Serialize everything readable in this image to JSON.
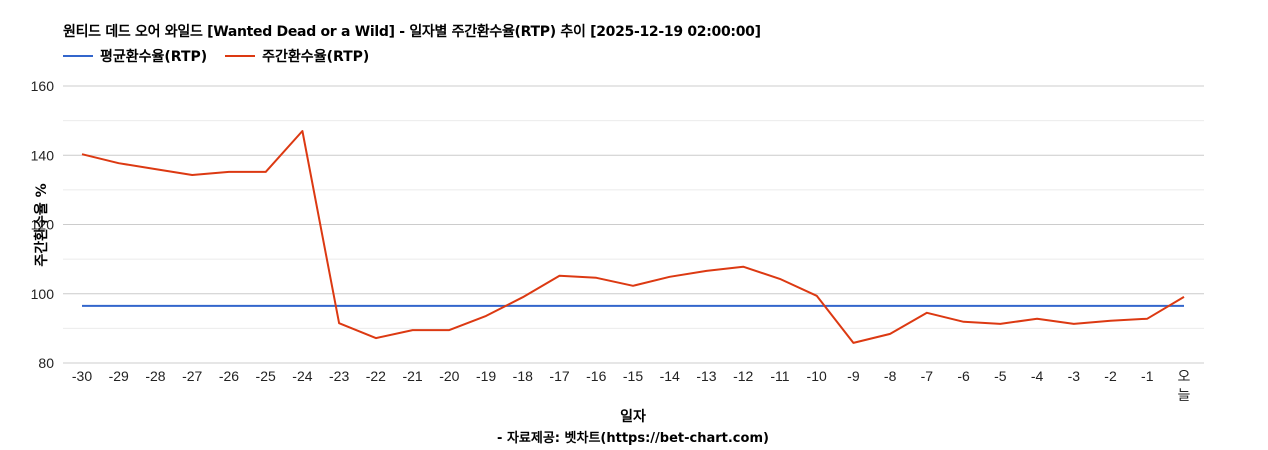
{
  "header": {
    "title": "원티드 데드 오어 와일드 [Wanted Dead or a Wild] - 일자별 주간환수율(RTP) 추이 [2025-12-19 02:00:00]"
  },
  "legend": [
    {
      "label": "평균환수율(RTP)",
      "color": "#3366cc"
    },
    {
      "label": "주간환수율(RTP)",
      "color": "#dc3912"
    }
  ],
  "footer": {
    "credit": "- 자료제공: 벳차트(https://bet-chart.com)"
  },
  "chart_data": {
    "type": "line",
    "title": "원티드 데드 오어 와일드 [Wanted Dead or a Wild] - 일자별 주간환수율(RTP) 추이 [2025-12-19 02:00:00]",
    "xlabel": "일자",
    "ylabel": "주간환수율 %",
    "categories": [
      "-30",
      "-29",
      "-28",
      "-27",
      "-26",
      "-25",
      "-24",
      "-23",
      "-22",
      "-21",
      "-20",
      "-19",
      "-18",
      "-17",
      "-16",
      "-15",
      "-14",
      "-13",
      "-12",
      "-11",
      "-10",
      "-9",
      "-8",
      "-7",
      "-6",
      "-5",
      "-4",
      "-3",
      "-2",
      "-1",
      "오늘"
    ],
    "series": [
      {
        "name": "평균환수율(RTP)",
        "color": "#3366cc",
        "values": [
          96.5,
          96.5,
          96.5,
          96.5,
          96.5,
          96.5,
          96.5,
          96.5,
          96.5,
          96.5,
          96.5,
          96.5,
          96.5,
          96.5,
          96.5,
          96.5,
          96.5,
          96.5,
          96.5,
          96.5,
          96.5,
          96.5,
          96.5,
          96.5,
          96.5,
          96.5,
          96.5,
          96.5,
          96.5,
          96.5,
          96.5
        ]
      },
      {
        "name": "주간환수율(RTP)",
        "color": "#dc3912",
        "values": [
          140.3,
          137.7,
          136.0,
          134.3,
          135.2,
          135.2,
          147.0,
          91.5,
          87.2,
          89.5,
          89.5,
          93.6,
          99.0,
          105.2,
          104.6,
          102.3,
          104.9,
          106.6,
          107.8,
          104.3,
          99.4,
          85.8,
          88.4,
          94.5,
          91.9,
          91.3,
          92.8,
          91.3,
          92.2,
          92.8,
          99.1
        ]
      }
    ],
    "ylim": [
      80,
      160
    ],
    "yticks": [
      80,
      100,
      120,
      140,
      160
    ],
    "minor_gridlines": [
      90,
      110,
      130,
      150
    ],
    "grid": true,
    "legend_position": "top"
  }
}
